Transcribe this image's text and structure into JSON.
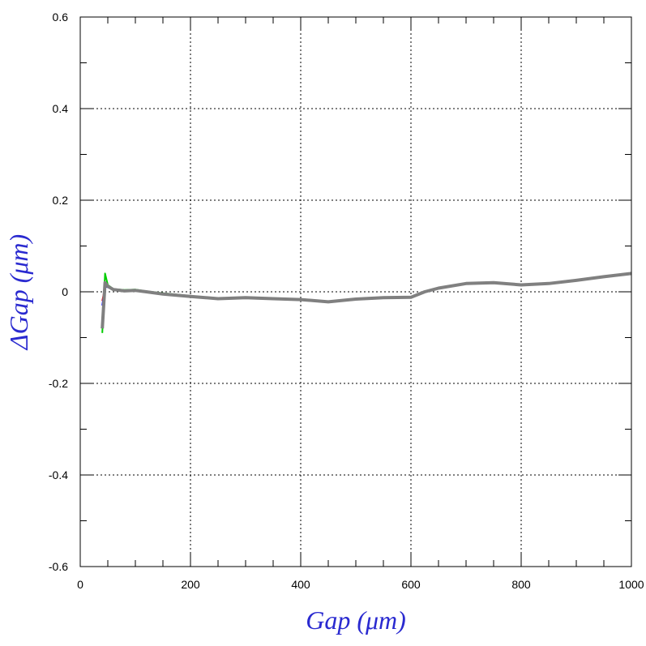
{
  "chart_data": {
    "type": "line",
    "title": "",
    "xlabel": "Gap  (μm)",
    "ylabel": "ΔGap  (μm)",
    "xlim": [
      0,
      1000
    ],
    "ylim": [
      -0.6,
      0.6
    ],
    "x_ticks": [
      "0",
      "200",
      "400",
      "600",
      "800",
      "1000"
    ],
    "y_ticks": [
      "-0.6",
      "-0.4",
      "-0.2",
      "0",
      "0.2",
      "0.4",
      "0.6"
    ],
    "grid": true,
    "legend": "none",
    "label_color": "#2a2ad0",
    "series": [
      {
        "color": "#ff0000",
        "x": [
          40,
          45,
          50,
          60,
          80,
          100,
          120,
          150,
          200,
          250,
          300,
          350,
          400,
          450,
          500,
          550,
          600,
          625,
          650,
          700,
          750,
          800,
          850,
          900,
          950,
          1000
        ],
        "y": [
          -0.02,
          0.01,
          0.012,
          0.005,
          0.002,
          0.003,
          0.0,
          -0.005,
          -0.01,
          -0.015,
          -0.013,
          -0.015,
          -0.017,
          -0.022,
          -0.016,
          -0.013,
          -0.012,
          0.0,
          0.008,
          0.018,
          0.02,
          0.015,
          0.018,
          0.025,
          0.033,
          0.04
        ]
      },
      {
        "color": "#0000ff",
        "x": [
          40,
          45,
          50,
          60,
          80,
          100,
          120,
          150,
          200,
          250,
          300,
          350,
          400,
          450,
          500,
          550,
          600,
          625,
          650,
          700,
          750,
          800,
          850,
          900,
          950,
          1000
        ],
        "y": [
          -0.03,
          0.012,
          0.01,
          0.004,
          0.001,
          0.002,
          -0.001,
          -0.006,
          -0.011,
          -0.016,
          -0.014,
          -0.016,
          -0.018,
          -0.023,
          -0.017,
          -0.014,
          -0.013,
          -0.001,
          0.007,
          0.017,
          0.019,
          0.014,
          0.017,
          0.024,
          0.032,
          0.039
        ]
      },
      {
        "color": "#00cc00",
        "x": [
          40,
          45,
          50,
          60,
          80,
          100,
          120,
          150,
          200,
          250,
          300,
          350,
          400,
          450,
          500,
          550,
          600,
          625,
          650,
          700,
          750,
          800,
          850,
          900,
          950,
          1000
        ],
        "y": [
          -0.09,
          0.04,
          0.015,
          0.006,
          0.004,
          0.005,
          0.001,
          -0.003,
          -0.009,
          -0.014,
          -0.012,
          -0.014,
          -0.016,
          -0.021,
          -0.015,
          -0.012,
          -0.011,
          0.001,
          0.009,
          0.019,
          0.021,
          0.016,
          0.019,
          0.026,
          0.034,
          0.041
        ]
      },
      {
        "color": "#808080",
        "x": [
          40,
          45,
          50,
          60,
          80,
          100,
          120,
          150,
          200,
          250,
          300,
          350,
          400,
          450,
          500,
          550,
          600,
          625,
          650,
          700,
          750,
          800,
          850,
          900,
          950,
          1000
        ],
        "y": [
          -0.08,
          0.02,
          0.012,
          0.005,
          0.002,
          0.003,
          0.0,
          -0.005,
          -0.01,
          -0.015,
          -0.013,
          -0.015,
          -0.017,
          -0.022,
          -0.016,
          -0.013,
          -0.012,
          0.0,
          0.008,
          0.018,
          0.02,
          0.015,
          0.018,
          0.025,
          0.033,
          0.04
        ]
      }
    ]
  }
}
